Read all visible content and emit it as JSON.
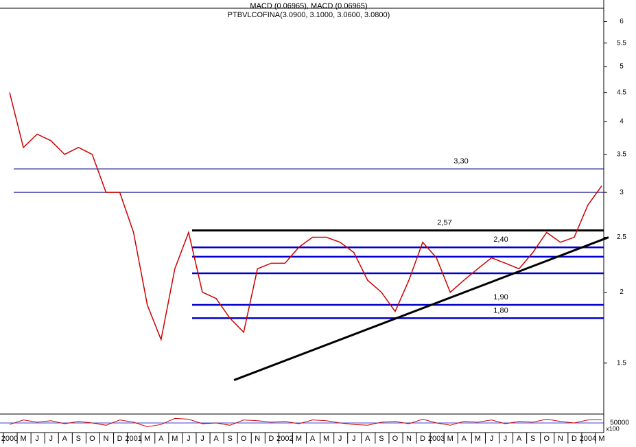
{
  "chart_data": {
    "type": "line",
    "title": "PTBVLCOFINA(3.0900, 3.1000, 3.0600, 3.0800)",
    "subtitle": "MACD (0.06965), MACD (0.06965)",
    "categories": [
      "2000",
      "M",
      "J",
      "J",
      "A",
      "S",
      "O",
      "N",
      "D",
      "2001",
      "M",
      "A",
      "M",
      "J",
      "J",
      "A",
      "S",
      "O",
      "N",
      "D",
      "2002",
      "M",
      "A",
      "M",
      "J",
      "J",
      "A",
      "S",
      "O",
      "N",
      "D",
      "2003",
      "M",
      "A",
      "M",
      "J",
      "J",
      "A",
      "S",
      "O",
      "N",
      "D",
      "2004",
      "M"
    ],
    "series": [
      {
        "name": "PTBVLCOFINA",
        "color": "#cc0000",
        "values": [
          4.5,
          3.6,
          3.8,
          3.7,
          3.5,
          3.6,
          3.5,
          3.0,
          3.0,
          2.55,
          1.9,
          1.65,
          2.2,
          2.55,
          2.0,
          1.95,
          1.8,
          1.7,
          2.2,
          2.25,
          2.25,
          2.4,
          2.5,
          2.5,
          2.45,
          2.35,
          2.1,
          2.0,
          1.85,
          2.1,
          2.45,
          2.3,
          2.0,
          2.1,
          2.2,
          2.3,
          2.25,
          2.2,
          2.35,
          2.55,
          2.45,
          2.5,
          2.85,
          3.08
        ]
      }
    ],
    "levels": [
      {
        "value": 3.3,
        "label": "3,30",
        "color": "#000080"
      },
      {
        "value": 3.0,
        "color": "#000080"
      },
      {
        "value": 2.57,
        "label": "2,57",
        "color": "#000000"
      },
      {
        "value": 2.4,
        "label": "2,40",
        "color": "#0000cc"
      },
      {
        "value": 2.31,
        "color": "#0000cc"
      },
      {
        "value": 2.16,
        "color": "#0000cc"
      },
      {
        "value": 1.9,
        "label": "1,90",
        "color": "#0000cc"
      },
      {
        "value": 1.8,
        "label": "1,80",
        "color": "#0000cc"
      }
    ],
    "trendline": {
      "x": [
        16.3,
        43.5
      ],
      "y": [
        1.4,
        2.5
      ]
    },
    "log_scale": true,
    "ylim": [
      1.23,
      6.3
    ],
    "yticks": [
      1.5,
      2.0,
      2.5,
      3.0,
      3.5,
      4.0,
      4.5,
      5.0,
      5.5,
      6.0
    ],
    "indicator": {
      "label": "50000",
      "unit": "x100",
      "color": "#cc0000",
      "values": [
        40,
        70,
        55,
        65,
        45,
        60,
        50,
        35,
        70,
        55,
        25,
        40,
        80,
        75,
        45,
        50,
        35,
        70,
        65,
        55,
        60,
        45,
        70,
        65,
        50,
        40,
        35,
        55,
        60,
        45,
        75,
        50,
        35,
        60,
        55,
        70,
        45,
        60,
        55,
        75,
        60,
        50,
        70,
        72
      ]
    }
  }
}
